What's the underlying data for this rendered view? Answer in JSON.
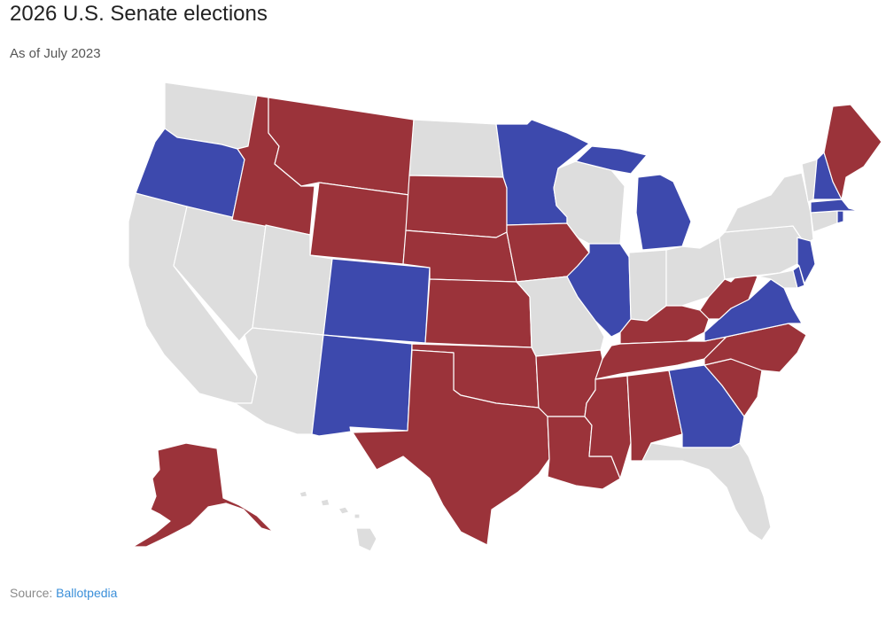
{
  "title": "2026 U.S. Senate elections",
  "subtitle": "As of July 2023",
  "source": {
    "prefix": "Source:",
    "link": "Ballotpedia"
  },
  "colors": {
    "democratic": "#3d49ad",
    "republican": "#9b333a",
    "none": "#dddddd",
    "border": "#ffffff"
  },
  "states": [
    {
      "id": "WA",
      "status": "none"
    },
    {
      "id": "OR",
      "status": "democratic"
    },
    {
      "id": "CA",
      "status": "none"
    },
    {
      "id": "NV",
      "status": "none"
    },
    {
      "id": "ID",
      "status": "republican"
    },
    {
      "id": "MT",
      "status": "republican"
    },
    {
      "id": "WY",
      "status": "republican"
    },
    {
      "id": "UT",
      "status": "none"
    },
    {
      "id": "AZ",
      "status": "none"
    },
    {
      "id": "CO",
      "status": "democratic"
    },
    {
      "id": "NM",
      "status": "democratic"
    },
    {
      "id": "ND",
      "status": "none"
    },
    {
      "id": "SD",
      "status": "republican"
    },
    {
      "id": "NE",
      "status": "republican"
    },
    {
      "id": "KS",
      "status": "republican"
    },
    {
      "id": "OK",
      "status": "republican"
    },
    {
      "id": "TX",
      "status": "republican"
    },
    {
      "id": "MN",
      "status": "democratic"
    },
    {
      "id": "IA",
      "status": "republican"
    },
    {
      "id": "MO",
      "status": "none"
    },
    {
      "id": "AR",
      "status": "republican"
    },
    {
      "id": "LA",
      "status": "republican"
    },
    {
      "id": "WI",
      "status": "none"
    },
    {
      "id": "IL",
      "status": "democratic"
    },
    {
      "id": "MI",
      "status": "democratic"
    },
    {
      "id": "IN",
      "status": "none"
    },
    {
      "id": "OH",
      "status": "none"
    },
    {
      "id": "KY",
      "status": "republican"
    },
    {
      "id": "TN",
      "status": "republican"
    },
    {
      "id": "MS",
      "status": "republican"
    },
    {
      "id": "AL",
      "status": "republican"
    },
    {
      "id": "GA",
      "status": "democratic"
    },
    {
      "id": "FL",
      "status": "none"
    },
    {
      "id": "SC",
      "status": "republican"
    },
    {
      "id": "NC",
      "status": "republican"
    },
    {
      "id": "VA",
      "status": "democratic"
    },
    {
      "id": "WV",
      "status": "republican"
    },
    {
      "id": "PA",
      "status": "none"
    },
    {
      "id": "NY",
      "status": "none"
    },
    {
      "id": "VT",
      "status": "none"
    },
    {
      "id": "NH",
      "status": "democratic"
    },
    {
      "id": "ME",
      "status": "republican"
    },
    {
      "id": "MA",
      "status": "democratic"
    },
    {
      "id": "RI",
      "status": "democratic"
    },
    {
      "id": "CT",
      "status": "none"
    },
    {
      "id": "NJ",
      "status": "democratic"
    },
    {
      "id": "DE",
      "status": "democratic"
    },
    {
      "id": "MD",
      "status": "none"
    },
    {
      "id": "AK",
      "status": "republican"
    },
    {
      "id": "HI",
      "status": "none"
    }
  ]
}
